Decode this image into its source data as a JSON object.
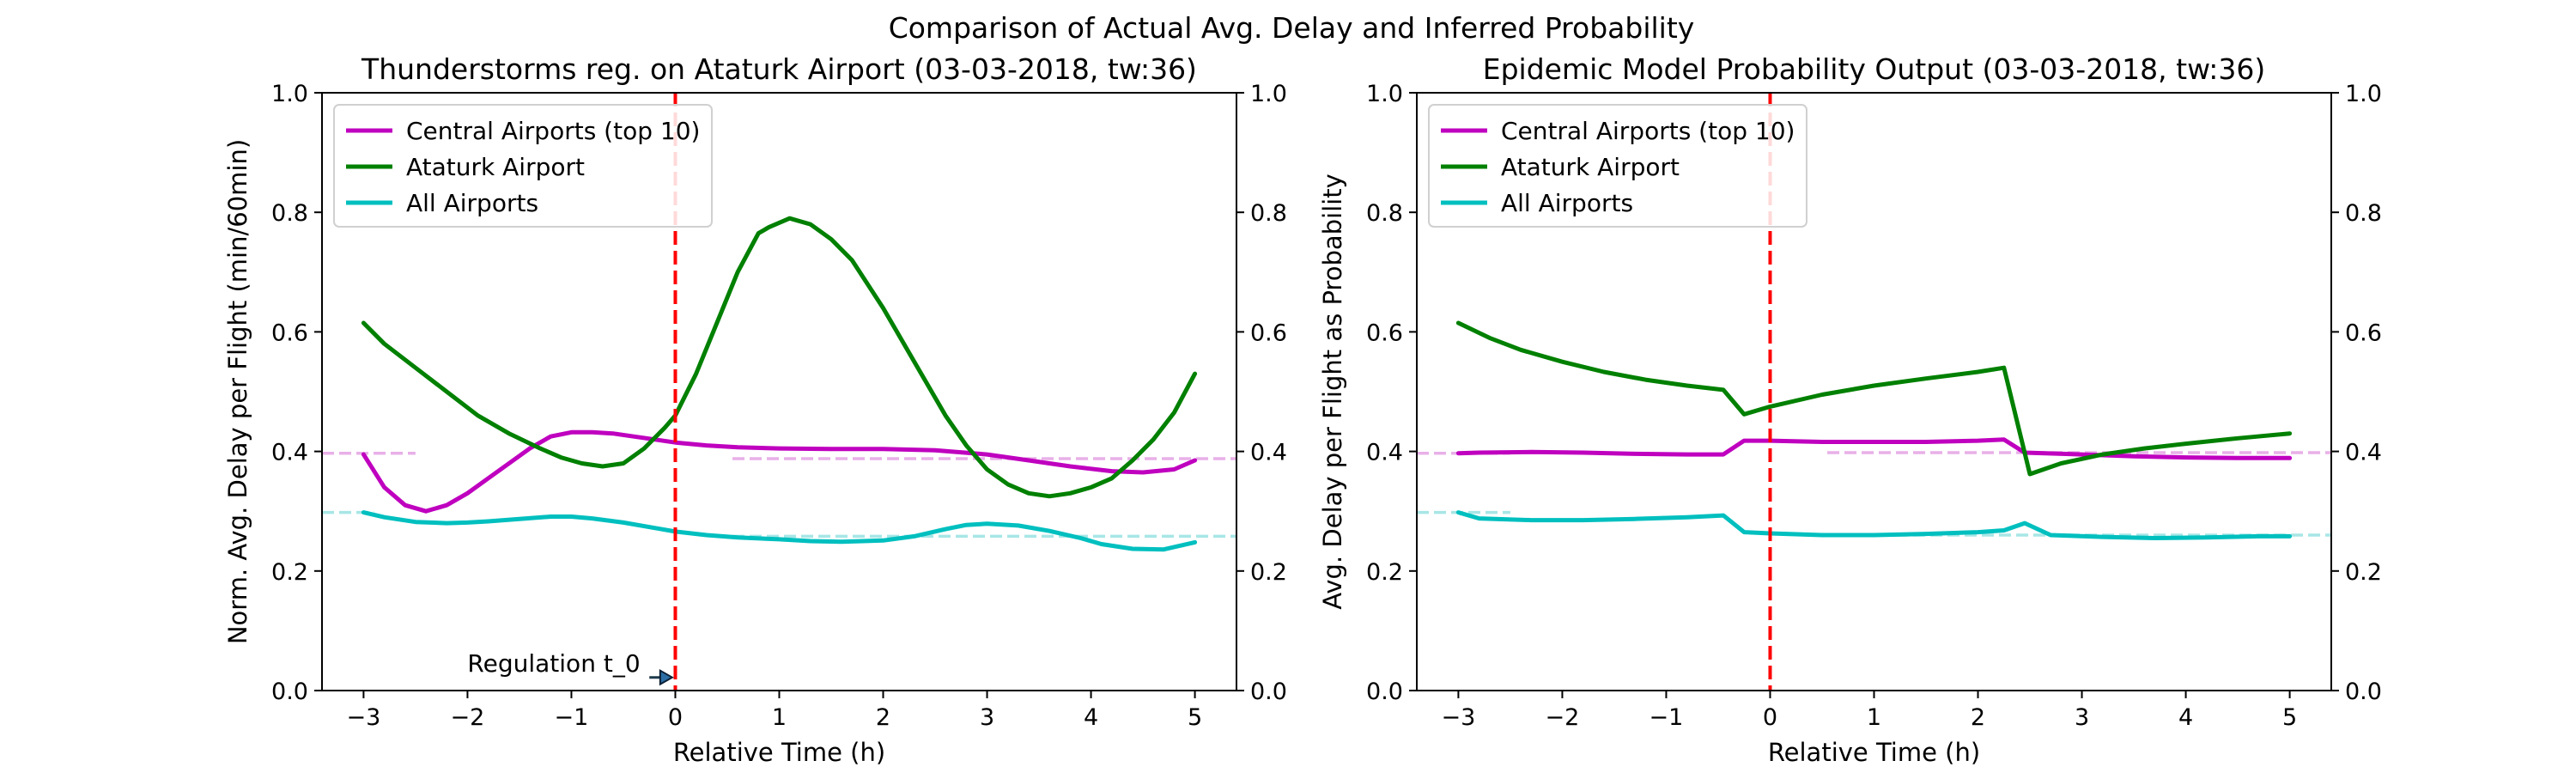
{
  "figure": {
    "suptitle": "Comparison of Actual Avg. Delay and Inferred Probability"
  },
  "chart_data": [
    {
      "type": "line",
      "title": "Thunderstorms reg. on Ataturk Airport (03-03-2018, tw:36)",
      "xlabel": "Relative Time (h)",
      "ylabel": "Norm. Avg. Delay per Flight (min/60min)",
      "xlim": [
        -3.4,
        5.4
      ],
      "ylim": [
        0.0,
        1.0
      ],
      "xticks": [
        -3,
        -2,
        -1,
        0,
        1,
        2,
        3,
        4,
        5
      ],
      "yticks": [
        0.0,
        0.2,
        0.4,
        0.6,
        0.8,
        1.0
      ],
      "right_yticks": [
        0.0,
        0.2,
        0.4,
        0.6,
        0.8,
        1.0
      ],
      "grid": false,
      "legend_position": "top-left",
      "series": [
        {
          "name": "Central Airports (top 10)",
          "color": "#bf00bf",
          "x": [
            -3.0,
            -2.8,
            -2.6,
            -2.4,
            -2.2,
            -2.0,
            -1.8,
            -1.6,
            -1.4,
            -1.2,
            -1.0,
            -0.8,
            -0.6,
            -0.4,
            -0.2,
            0.0,
            0.3,
            0.6,
            1.0,
            1.5,
            2.0,
            2.5,
            3.0,
            3.4,
            3.8,
            4.2,
            4.5,
            4.8,
            5.0
          ],
          "y": [
            0.395,
            0.34,
            0.31,
            0.3,
            0.31,
            0.33,
            0.355,
            0.38,
            0.405,
            0.425,
            0.432,
            0.432,
            0.43,
            0.425,
            0.42,
            0.415,
            0.41,
            0.407,
            0.405,
            0.404,
            0.404,
            0.402,
            0.395,
            0.385,
            0.375,
            0.367,
            0.365,
            0.37,
            0.385
          ]
        },
        {
          "name": "Ataturk Airport",
          "color": "#008000",
          "x": [
            -3.0,
            -2.8,
            -2.5,
            -2.2,
            -1.9,
            -1.6,
            -1.3,
            -1.1,
            -0.9,
            -0.7,
            -0.5,
            -0.3,
            -0.1,
            0.0,
            0.2,
            0.4,
            0.6,
            0.8,
            0.9,
            1.1,
            1.3,
            1.5,
            1.7,
            2.0,
            2.3,
            2.6,
            2.8,
            3.0,
            3.2,
            3.4,
            3.6,
            3.8,
            4.0,
            4.2,
            4.4,
            4.6,
            4.8,
            5.0
          ],
          "y": [
            0.615,
            0.58,
            0.54,
            0.5,
            0.46,
            0.43,
            0.405,
            0.39,
            0.38,
            0.375,
            0.38,
            0.405,
            0.44,
            0.46,
            0.53,
            0.615,
            0.7,
            0.765,
            0.775,
            0.79,
            0.78,
            0.755,
            0.72,
            0.64,
            0.55,
            0.46,
            0.41,
            0.37,
            0.345,
            0.33,
            0.325,
            0.33,
            0.34,
            0.355,
            0.385,
            0.42,
            0.465,
            0.53
          ]
        },
        {
          "name": "All Airports",
          "color": "#00bfbf",
          "x": [
            -3.0,
            -2.8,
            -2.5,
            -2.2,
            -2.0,
            -1.8,
            -1.5,
            -1.2,
            -1.0,
            -0.8,
            -0.5,
            -0.2,
            0.0,
            0.3,
            0.6,
            1.0,
            1.3,
            1.6,
            2.0,
            2.3,
            2.6,
            2.8,
            3.0,
            3.3,
            3.6,
            3.9,
            4.1,
            4.4,
            4.7,
            5.0
          ],
          "y": [
            0.298,
            0.29,
            0.282,
            0.28,
            0.281,
            0.283,
            0.287,
            0.291,
            0.291,
            0.288,
            0.281,
            0.272,
            0.266,
            0.26,
            0.256,
            0.253,
            0.25,
            0.249,
            0.251,
            0.258,
            0.27,
            0.277,
            0.279,
            0.276,
            0.267,
            0.255,
            0.245,
            0.237,
            0.236,
            0.248
          ]
        }
      ],
      "reference_lines": [
        {
          "color": "#e8b0e8",
          "x": [
            -3.4,
            -2.5
          ],
          "y": 0.397
        },
        {
          "color": "#e8b0e8",
          "x": [
            0.55,
            5.4
          ],
          "y": 0.388
        },
        {
          "color": "#a8e6e6",
          "x": [
            -3.4,
            -2.9
          ],
          "y": 0.298
        },
        {
          "color": "#a8e6e6",
          "x": [
            0.55,
            5.4
          ],
          "y": 0.258
        }
      ],
      "vline": {
        "x": 0,
        "color": "#ff0000"
      },
      "annotation": {
        "text": "Regulation t_0",
        "text_x": -2.0,
        "text_y": 0.02,
        "arrow_from_x": -0.25,
        "arrow_to_x": -0.03,
        "arrow_y": 0.022
      }
    },
    {
      "type": "line",
      "title": "Epidemic Model Probability Output (03-03-2018, tw:36)",
      "xlabel": "Relative Time (h)",
      "ylabel": "Avg. Delay per Flight as Probability",
      "xlim": [
        -3.4,
        5.4
      ],
      "ylim": [
        0.0,
        1.0
      ],
      "xticks": [
        -3,
        -2,
        -1,
        0,
        1,
        2,
        3,
        4,
        5
      ],
      "yticks": [
        0.0,
        0.2,
        0.4,
        0.6,
        0.8,
        1.0
      ],
      "right_yticks": [
        0.0,
        0.2,
        0.4,
        0.6,
        0.8,
        1.0
      ],
      "grid": false,
      "legend_position": "top-left",
      "series": [
        {
          "name": "Central Airports (top 10)",
          "color": "#bf00bf",
          "x": [
            -3.0,
            -2.8,
            -2.3,
            -1.8,
            -1.3,
            -0.8,
            -0.45,
            -0.25,
            0.0,
            0.5,
            1.0,
            1.5,
            2.0,
            2.25,
            2.45,
            3.0,
            3.5,
            4.0,
            4.5,
            5.0
          ],
          "y": [
            0.397,
            0.398,
            0.399,
            0.398,
            0.396,
            0.395,
            0.395,
            0.418,
            0.418,
            0.416,
            0.416,
            0.416,
            0.418,
            0.42,
            0.398,
            0.395,
            0.392,
            0.39,
            0.389,
            0.389
          ]
        },
        {
          "name": "Ataturk Airport",
          "color": "#008000",
          "x": [
            -3.0,
            -2.7,
            -2.4,
            -2.0,
            -1.6,
            -1.2,
            -0.8,
            -0.45,
            -0.25,
            0.0,
            0.5,
            1.0,
            1.5,
            2.0,
            2.25,
            2.5,
            2.8,
            3.2,
            3.6,
            4.0,
            4.5,
            5.0
          ],
          "y": [
            0.615,
            0.59,
            0.57,
            0.55,
            0.533,
            0.52,
            0.51,
            0.503,
            0.462,
            0.475,
            0.495,
            0.51,
            0.522,
            0.533,
            0.54,
            0.362,
            0.38,
            0.395,
            0.405,
            0.413,
            0.422,
            0.43
          ]
        },
        {
          "name": "All Airports",
          "color": "#00bfbf",
          "x": [
            -3.0,
            -2.8,
            -2.3,
            -1.8,
            -1.3,
            -0.8,
            -0.45,
            -0.25,
            0.0,
            0.5,
            1.0,
            1.5,
            2.0,
            2.25,
            2.45,
            2.7,
            3.2,
            3.7,
            4.2,
            4.7,
            5.0
          ],
          "y": [
            0.298,
            0.288,
            0.285,
            0.285,
            0.287,
            0.29,
            0.293,
            0.265,
            0.263,
            0.26,
            0.26,
            0.262,
            0.265,
            0.268,
            0.28,
            0.26,
            0.257,
            0.255,
            0.256,
            0.258,
            0.258
          ]
        }
      ],
      "reference_lines": [
        {
          "color": "#e8b0e8",
          "x": [
            -3.4,
            -2.5
          ],
          "y": 0.397
        },
        {
          "color": "#e8b0e8",
          "x": [
            0.55,
            5.4
          ],
          "y": 0.398
        },
        {
          "color": "#a8e6e6",
          "x": [
            -3.4,
            -2.5
          ],
          "y": 0.298
        },
        {
          "color": "#a8e6e6",
          "x": [
            0.55,
            5.4
          ],
          "y": 0.26
        }
      ],
      "vline": {
        "x": 0,
        "color": "#ff0000"
      }
    }
  ]
}
